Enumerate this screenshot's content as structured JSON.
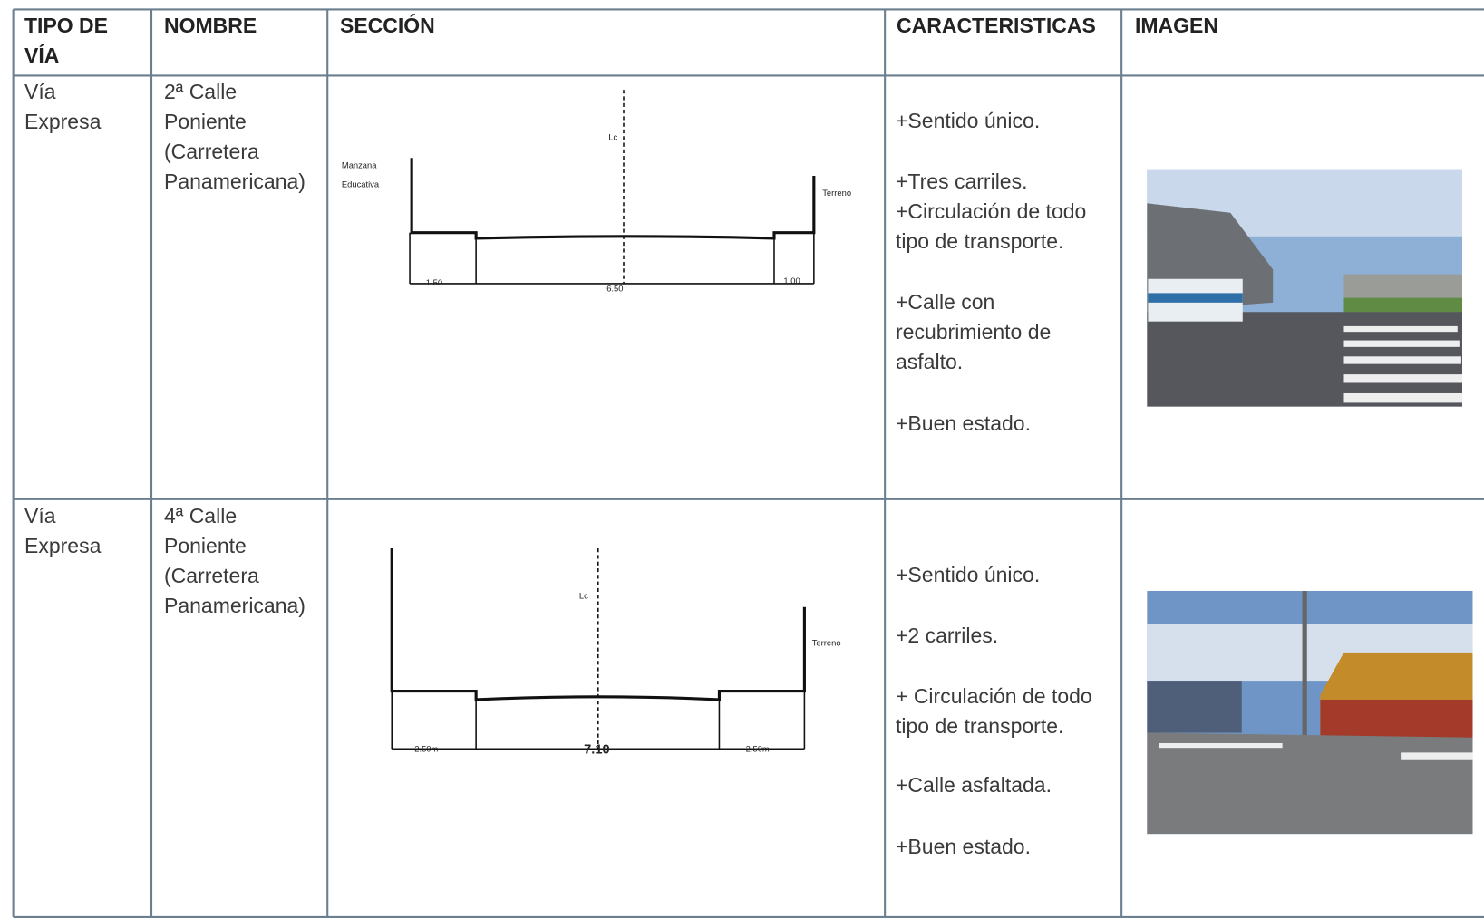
{
  "table": {
    "headers": [
      "TIPO DE VÍA",
      "NOMBRE",
      "SECCIÓN",
      "CARACTERISTICAS",
      "IMAGEN"
    ],
    "rows": [
      {
        "tipo": "Vía Expresa",
        "nombre": "2ª Calle Poniente (Carretera Panamericana)",
        "seccion": {
          "centerline": "Lc",
          "left_label": [
            "Manzana",
            "Educativa"
          ],
          "right_label": "Terreno",
          "dims": [
            "1.50",
            "6.50",
            "1.00"
          ]
        },
        "caracteristicas": [
          "+Sentido único.",
          "+Tres carriles.",
          "+Circulación de todo tipo de transporte.",
          "+Calle con recubrimiento de asfalto.",
          "+Buen estado."
        ]
      },
      {
        "tipo": "Vía Expresa",
        "nombre": "4ª Calle Poniente (Carretera Panamericana)",
        "seccion": {
          "centerline": "Lc",
          "right_label": "Terreno",
          "dims": [
            "2.50m",
            "7.10",
            "2.50m"
          ]
        },
        "caracteristicas": [
          "+Sentido único.",
          "+2 carriles.",
          "+ Circulación de todo tipo de transporte.",
          "+Calle asfaltada.",
          "+Buen estado."
        ]
      }
    ]
  }
}
